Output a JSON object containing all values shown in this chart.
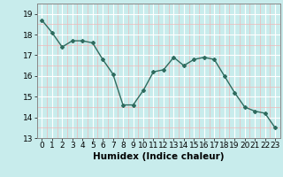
{
  "x": [
    0,
    1,
    2,
    3,
    4,
    5,
    6,
    7,
    8,
    9,
    10,
    11,
    12,
    13,
    14,
    15,
    16,
    17,
    18,
    19,
    20,
    21,
    22,
    23
  ],
  "y": [
    18.7,
    18.1,
    17.4,
    17.7,
    17.7,
    17.6,
    16.8,
    16.1,
    14.6,
    14.6,
    15.3,
    16.2,
    16.3,
    16.9,
    16.5,
    16.8,
    16.9,
    16.8,
    16.0,
    15.2,
    14.5,
    14.3,
    14.2,
    13.5
  ],
  "line_color": "#2e6b5e",
  "marker": "D",
  "marker_size": 2,
  "bg_color": "#c8ecec",
  "grid_major_color": "#ffffff",
  "grid_minor_color": "#f0b8b8",
  "xlabel": "Humidex (Indice chaleur)",
  "ylim": [
    13,
    19.5
  ],
  "yticks": [
    13,
    14,
    15,
    16,
    17,
    18,
    19
  ],
  "xlim": [
    -0.5,
    23.5
  ],
  "xticks": [
    0,
    1,
    2,
    3,
    4,
    5,
    6,
    7,
    8,
    9,
    10,
    11,
    12,
    13,
    14,
    15,
    16,
    17,
    18,
    19,
    20,
    21,
    22,
    23
  ],
  "xlabel_fontsize": 7.5,
  "tick_fontsize": 6.5
}
